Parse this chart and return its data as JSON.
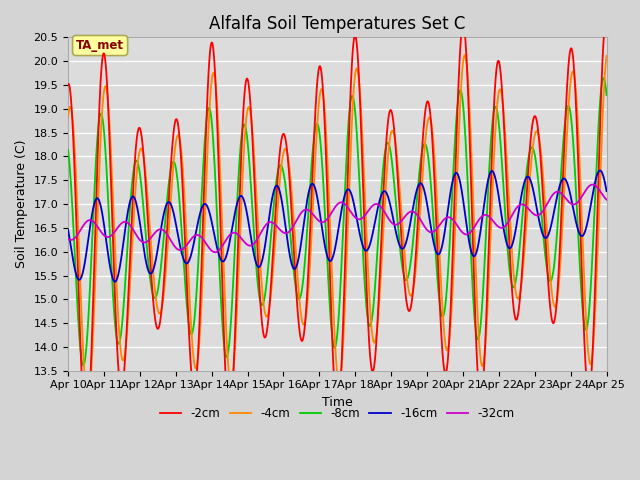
{
  "title": "Alfalfa Soil Temperatures Set C",
  "xlabel": "Time",
  "ylabel": "Soil Temperature (C)",
  "ylim": [
    13.5,
    20.5
  ],
  "yticks": [
    13.5,
    14.0,
    14.5,
    15.0,
    15.5,
    16.0,
    16.5,
    17.0,
    17.5,
    18.0,
    18.5,
    19.0,
    19.5,
    20.0,
    20.5
  ],
  "x_labels": [
    "Apr 10",
    "Apr 11",
    "Apr 12",
    "Apr 13",
    "Apr 14",
    "Apr 15",
    "Apr 16",
    "Apr 17",
    "Apr 18",
    "Apr 19",
    "Apr 20",
    "Apr 21",
    "Apr 22",
    "Apr 23",
    "Apr 24",
    "Apr 25"
  ],
  "line_colors": [
    "#ff0000",
    "#ff8800",
    "#00cc00",
    "#0000cc",
    "#cc00cc"
  ],
  "line_labels": [
    "-2cm",
    "-4cm",
    "-8cm",
    "-16cm",
    "-32cm"
  ],
  "legend_label": "TA_met",
  "fig_bg": "#d4d4d4",
  "plot_bg": "#dcdcdc",
  "grid_color": "#ffffff",
  "title_fontsize": 12,
  "label_fontsize": 9,
  "tick_fontsize": 8
}
